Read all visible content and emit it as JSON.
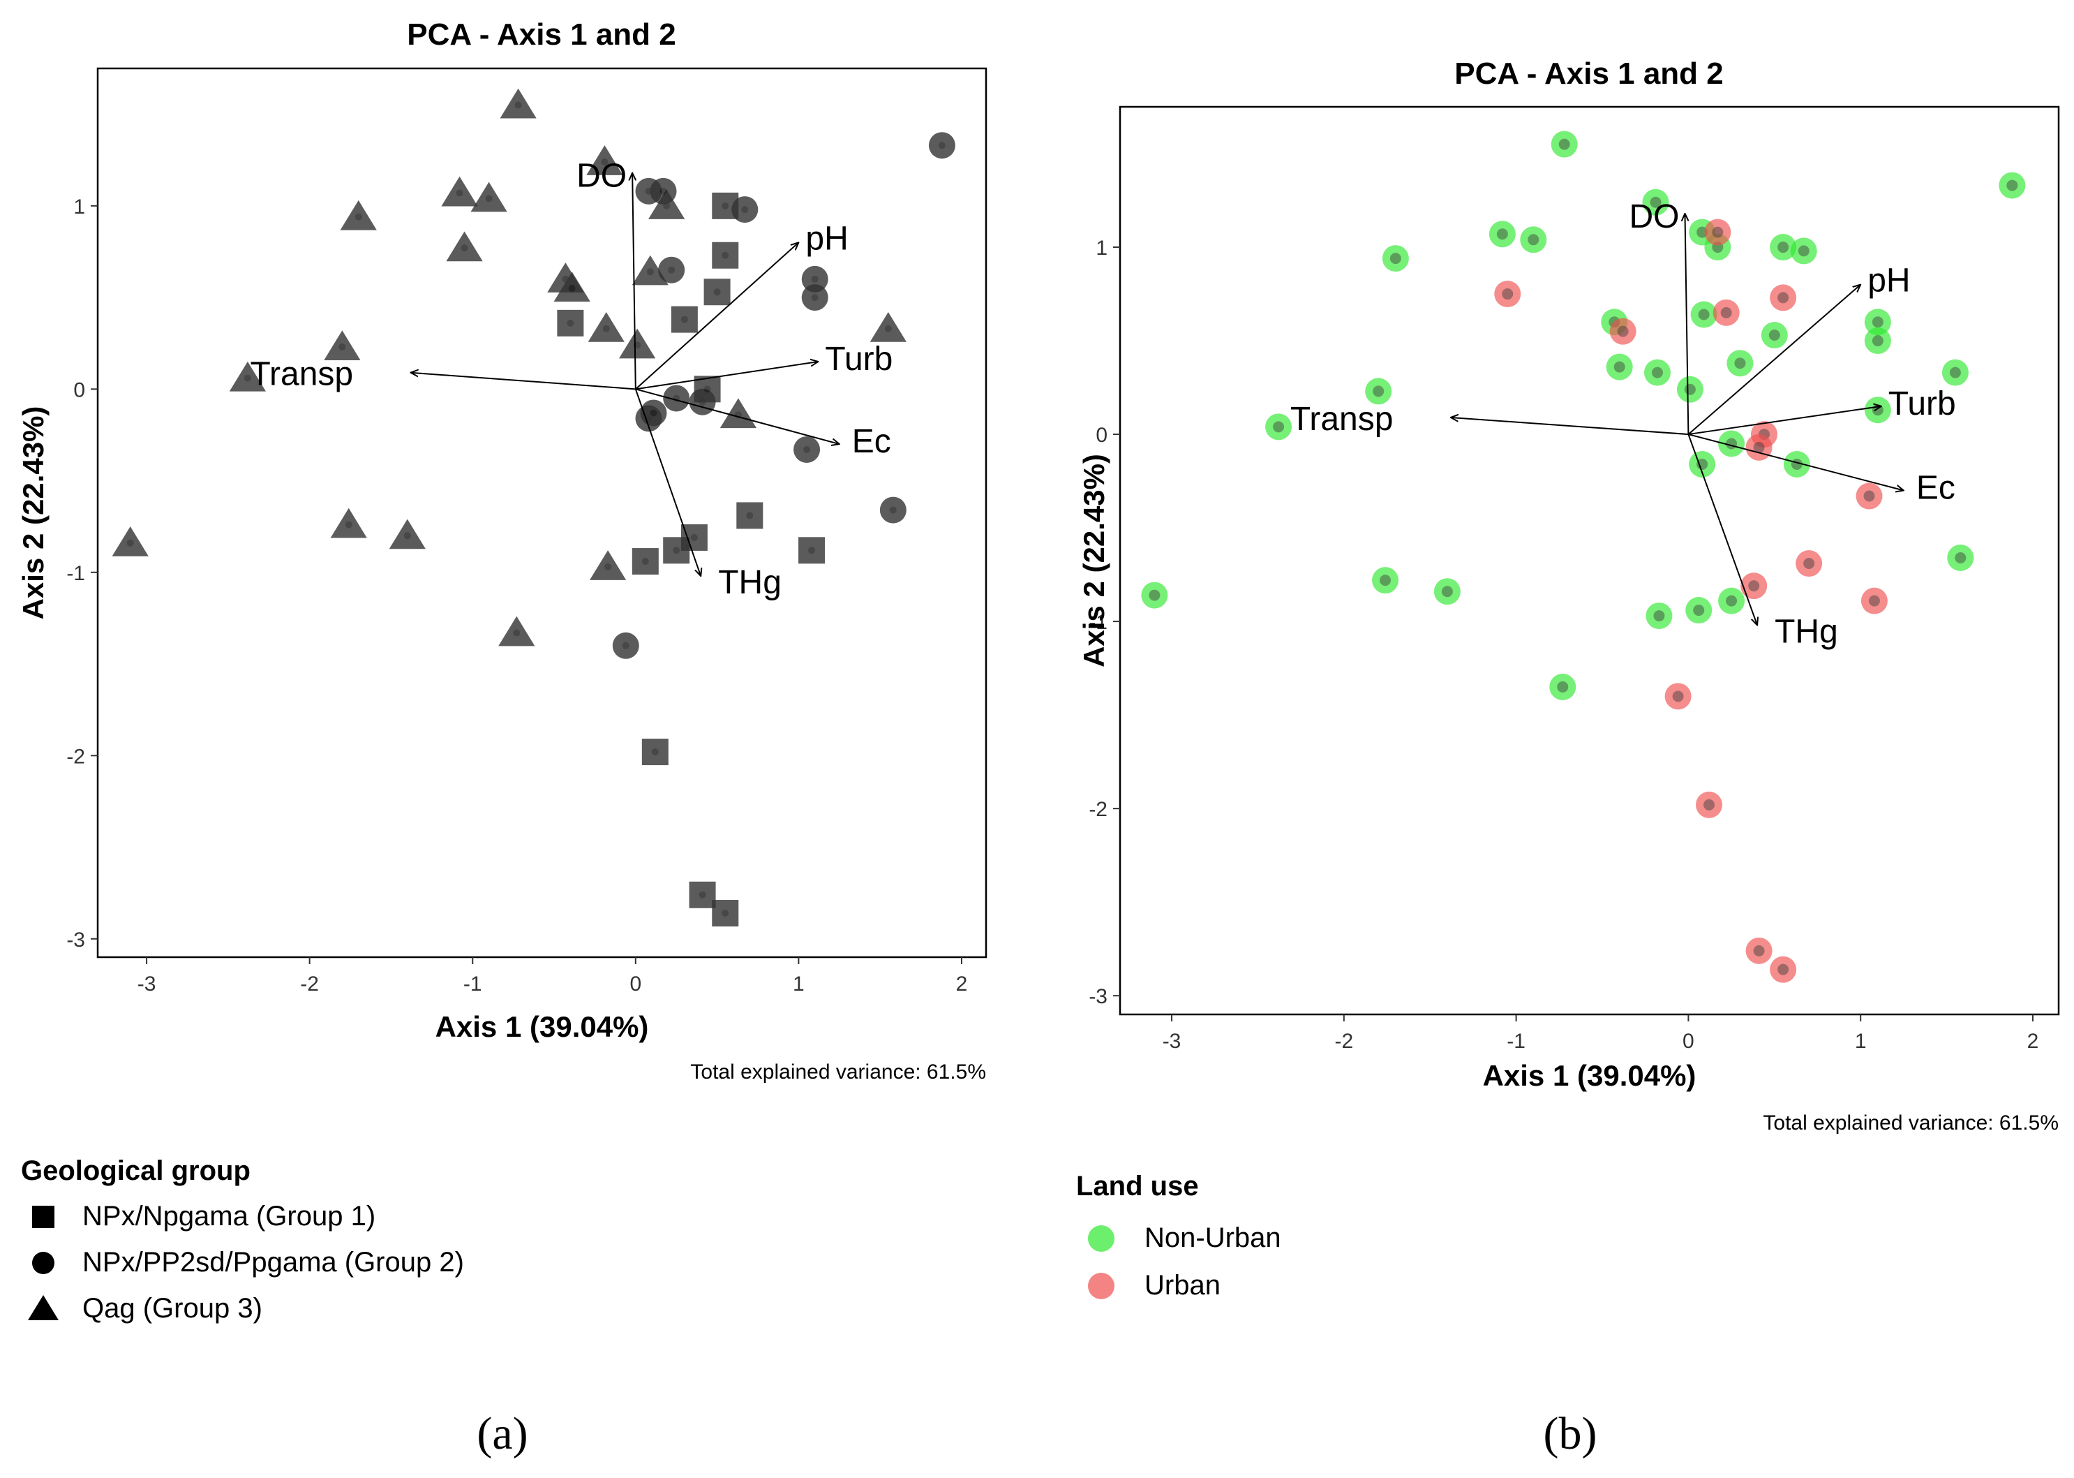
{
  "chart_data": [
    {
      "panel": "a",
      "panel_label": "(a)",
      "type": "scatter",
      "title": "PCA - Axis 1 and 2",
      "xlabel": "Axis 1 (39.04%)",
      "ylabel": "Axis 2 (22.43%)",
      "xlim": [
        -3.3,
        2.15
      ],
      "ylim": [
        -3.1,
        1.75
      ],
      "xticks": [
        -3,
        -2,
        -1,
        0,
        1,
        2
      ],
      "yticks": [
        -3,
        -2,
        -1,
        0,
        1
      ],
      "xtick_labels": [
        "-3",
        "-2",
        "-1",
        "0",
        "1",
        "2"
      ],
      "ytick_labels": [
        "-3",
        "-2",
        "-1",
        "0",
        "1"
      ],
      "note": "Total explained variance: 61.5%",
      "legend_title": "Geological group",
      "legend": [
        {
          "label": "NPx/Npgama (Group 1)",
          "shape": "square"
        },
        {
          "label": "NPx/PP2sd/Ppgama (Group 2)",
          "shape": "circle"
        },
        {
          "label": "Qag (Group 3)",
          "shape": "triangle"
        }
      ],
      "point_color": "#333333",
      "loadings": [
        {
          "name": "DO",
          "x": -0.02,
          "y": 1.18
        },
        {
          "name": "pH",
          "x": 1.0,
          "y": 0.8
        },
        {
          "name": "Turb",
          "x": 1.12,
          "y": 0.15
        },
        {
          "name": "Transp",
          "x": -1.38,
          "y": 0.09
        },
        {
          "name": "Ec",
          "x": 1.25,
          "y": -0.3
        },
        {
          "name": "THg",
          "x": 0.4,
          "y": -1.02
        }
      ],
      "points": [
        {
          "x": -0.72,
          "y": 1.55,
          "group": "Group 3"
        },
        {
          "x": -1.7,
          "y": 0.94,
          "group": "Group 3"
        },
        {
          "x": -1.08,
          "y": 1.07,
          "group": "Group 3"
        },
        {
          "x": -0.9,
          "y": 1.04,
          "group": "Group 3"
        },
        {
          "x": -1.05,
          "y": 0.77,
          "group": "Group 3"
        },
        {
          "x": -0.19,
          "y": 1.24,
          "group": "Group 3"
        },
        {
          "x": 0.19,
          "y": 1.0,
          "group": "Group 3"
        },
        {
          "x": -0.43,
          "y": 0.6,
          "group": "Group 3"
        },
        {
          "x": -0.39,
          "y": 0.55,
          "group": "Group 3"
        },
        {
          "x": -0.18,
          "y": 0.33,
          "group": "Group 3"
        },
        {
          "x": 0.01,
          "y": 0.24,
          "group": "Group 3"
        },
        {
          "x": 0.09,
          "y": 0.64,
          "group": "Group 3"
        },
        {
          "x": -1.8,
          "y": 0.23,
          "group": "Group 3"
        },
        {
          "x": -2.38,
          "y": 0.06,
          "group": "Group 3"
        },
        {
          "x": 1.55,
          "y": 0.33,
          "group": "Group 3"
        },
        {
          "x": 0.63,
          "y": -0.14,
          "group": "Group 3"
        },
        {
          "x": -3.1,
          "y": -0.84,
          "group": "Group 3"
        },
        {
          "x": -1.76,
          "y": -0.74,
          "group": "Group 3"
        },
        {
          "x": -1.4,
          "y": -0.8,
          "group": "Group 3"
        },
        {
          "x": -0.17,
          "y": -0.97,
          "group": "Group 3"
        },
        {
          "x": -0.73,
          "y": -1.33,
          "group": "Group 3"
        },
        {
          "x": 0.08,
          "y": 1.08,
          "group": "Group 2"
        },
        {
          "x": 0.17,
          "y": 1.08,
          "group": "Group 2"
        },
        {
          "x": 0.67,
          "y": 0.98,
          "group": "Group 2"
        },
        {
          "x": 0.22,
          "y": 0.65,
          "group": "Group 2"
        },
        {
          "x": 1.1,
          "y": 0.6,
          "group": "Group 2"
        },
        {
          "x": 1.1,
          "y": 0.5,
          "group": "Group 2"
        },
        {
          "x": 1.88,
          "y": 1.33,
          "group": "Group 2"
        },
        {
          "x": 0.25,
          "y": -0.05,
          "group": "Group 2"
        },
        {
          "x": 0.41,
          "y": -0.07,
          "group": "Group 2"
        },
        {
          "x": 0.08,
          "y": -0.16,
          "group": "Group 2"
        },
        {
          "x": 0.11,
          "y": -0.13,
          "group": "Group 2"
        },
        {
          "x": 1.05,
          "y": -0.33,
          "group": "Group 2"
        },
        {
          "x": 1.58,
          "y": -0.66,
          "group": "Group 2"
        },
        {
          "x": -0.06,
          "y": -1.4,
          "group": "Group 2"
        },
        {
          "x": 0.55,
          "y": 1.0,
          "group": "Group 1"
        },
        {
          "x": 0.55,
          "y": 0.73,
          "group": "Group 1"
        },
        {
          "x": 0.5,
          "y": 0.53,
          "group": "Group 1"
        },
        {
          "x": 0.3,
          "y": 0.38,
          "group": "Group 1"
        },
        {
          "x": -0.4,
          "y": 0.36,
          "group": "Group 1"
        },
        {
          "x": 0.44,
          "y": 0.0,
          "group": "Group 1"
        },
        {
          "x": 0.7,
          "y": -0.69,
          "group": "Group 1"
        },
        {
          "x": 1.08,
          "y": -0.88,
          "group": "Group 1"
        },
        {
          "x": 0.36,
          "y": -0.81,
          "group": "Group 1"
        },
        {
          "x": 0.25,
          "y": -0.88,
          "group": "Group 1"
        },
        {
          "x": 0.06,
          "y": -0.94,
          "group": "Group 1"
        },
        {
          "x": 0.12,
          "y": -1.98,
          "group": "Group 1"
        },
        {
          "x": 0.41,
          "y": -2.76,
          "group": "Group 1"
        },
        {
          "x": 0.55,
          "y": -2.86,
          "group": "Group 1"
        }
      ]
    },
    {
      "panel": "b",
      "panel_label": "(b)",
      "type": "scatter",
      "title": "PCA - Axis 1 and 2",
      "xlabel": "Axis 1 (39.04%)",
      "ylabel": "Axis 2 (22.43%)",
      "xlim": [
        -3.3,
        2.15
      ],
      "ylim": [
        -3.1,
        1.75
      ],
      "xticks": [
        -3,
        -2,
        -1,
        0,
        1,
        2
      ],
      "yticks": [
        -3,
        -2,
        -1,
        0,
        1
      ],
      "xtick_labels": [
        "-3",
        "-2",
        "-1",
        "0",
        "1",
        "2"
      ],
      "ytick_labels": [
        "-3",
        "-2",
        "-1",
        "0",
        "1"
      ],
      "note": "Total explained variance: 61.5%",
      "legend_title": "Land use",
      "legend": [
        {
          "label": "Non-Urban",
          "color": "#2ee82e"
        },
        {
          "label": "Urban",
          "color": "#f05050"
        }
      ],
      "loadings": [
        {
          "name": "DO",
          "x": -0.02,
          "y": 1.18
        },
        {
          "name": "pH",
          "x": 1.0,
          "y": 0.8
        },
        {
          "name": "Turb",
          "x": 1.12,
          "y": 0.15
        },
        {
          "name": "Transp",
          "x": -1.38,
          "y": 0.09
        },
        {
          "name": "Ec",
          "x": 1.25,
          "y": -0.3
        },
        {
          "name": "THg",
          "x": 0.4,
          "y": -1.02
        }
      ],
      "points": [
        {
          "x": -0.72,
          "y": 1.55,
          "group": "Non-Urban"
        },
        {
          "x": -1.7,
          "y": 0.94,
          "group": "Non-Urban"
        },
        {
          "x": -1.08,
          "y": 1.07,
          "group": "Non-Urban"
        },
        {
          "x": -0.9,
          "y": 1.04,
          "group": "Non-Urban"
        },
        {
          "x": -0.19,
          "y": 1.24,
          "group": "Non-Urban"
        },
        {
          "x": 0.08,
          "y": 1.08,
          "group": "Non-Urban"
        },
        {
          "x": 0.17,
          "y": 1.0,
          "group": "Non-Urban"
        },
        {
          "x": 0.55,
          "y": 1.0,
          "group": "Non-Urban"
        },
        {
          "x": 0.67,
          "y": 0.98,
          "group": "Non-Urban"
        },
        {
          "x": 1.88,
          "y": 1.33,
          "group": "Non-Urban"
        },
        {
          "x": -0.43,
          "y": 0.6,
          "group": "Non-Urban"
        },
        {
          "x": 0.09,
          "y": 0.64,
          "group": "Non-Urban"
        },
        {
          "x": 0.5,
          "y": 0.53,
          "group": "Non-Urban"
        },
        {
          "x": 1.1,
          "y": 0.6,
          "group": "Non-Urban"
        },
        {
          "x": 1.1,
          "y": 0.5,
          "group": "Non-Urban"
        },
        {
          "x": 0.3,
          "y": 0.38,
          "group": "Non-Urban"
        },
        {
          "x": -0.4,
          "y": 0.36,
          "group": "Non-Urban"
        },
        {
          "x": -0.18,
          "y": 0.33,
          "group": "Non-Urban"
        },
        {
          "x": 1.55,
          "y": 0.33,
          "group": "Non-Urban"
        },
        {
          "x": 0.01,
          "y": 0.24,
          "group": "Non-Urban"
        },
        {
          "x": -1.8,
          "y": 0.23,
          "group": "Non-Urban"
        },
        {
          "x": -2.38,
          "y": 0.04,
          "group": "Non-Urban"
        },
        {
          "x": 1.1,
          "y": 0.13,
          "group": "Non-Urban"
        },
        {
          "x": 0.25,
          "y": -0.05,
          "group": "Non-Urban"
        },
        {
          "x": 0.08,
          "y": -0.16,
          "group": "Non-Urban"
        },
        {
          "x": 0.63,
          "y": -0.16,
          "group": "Non-Urban"
        },
        {
          "x": 1.58,
          "y": -0.66,
          "group": "Non-Urban"
        },
        {
          "x": -3.1,
          "y": -0.86,
          "group": "Non-Urban"
        },
        {
          "x": -1.76,
          "y": -0.78,
          "group": "Non-Urban"
        },
        {
          "x": -1.4,
          "y": -0.84,
          "group": "Non-Urban"
        },
        {
          "x": -0.17,
          "y": -0.97,
          "group": "Non-Urban"
        },
        {
          "x": 0.06,
          "y": -0.94,
          "group": "Non-Urban"
        },
        {
          "x": 0.25,
          "y": -0.89,
          "group": "Non-Urban"
        },
        {
          "x": -0.73,
          "y": -1.35,
          "group": "Non-Urban"
        },
        {
          "x": -1.05,
          "y": 0.75,
          "group": "Urban"
        },
        {
          "x": -0.38,
          "y": 0.55,
          "group": "Urban"
        },
        {
          "x": 0.17,
          "y": 1.08,
          "group": "Urban"
        },
        {
          "x": 0.22,
          "y": 0.65,
          "group": "Urban"
        },
        {
          "x": 0.55,
          "y": 0.73,
          "group": "Urban"
        },
        {
          "x": 0.44,
          "y": 0.0,
          "group": "Urban"
        },
        {
          "x": 0.41,
          "y": -0.07,
          "group": "Urban"
        },
        {
          "x": 1.05,
          "y": -0.33,
          "group": "Urban"
        },
        {
          "x": 0.7,
          "y": -0.69,
          "group": "Urban"
        },
        {
          "x": 1.08,
          "y": -0.89,
          "group": "Urban"
        },
        {
          "x": 0.38,
          "y": -0.81,
          "group": "Urban"
        },
        {
          "x": -0.06,
          "y": -1.4,
          "group": "Urban"
        },
        {
          "x": 0.12,
          "y": -1.98,
          "group": "Urban"
        },
        {
          "x": 0.41,
          "y": -2.76,
          "group": "Urban"
        },
        {
          "x": 0.55,
          "y": -2.86,
          "group": "Urban"
        }
      ]
    }
  ]
}
